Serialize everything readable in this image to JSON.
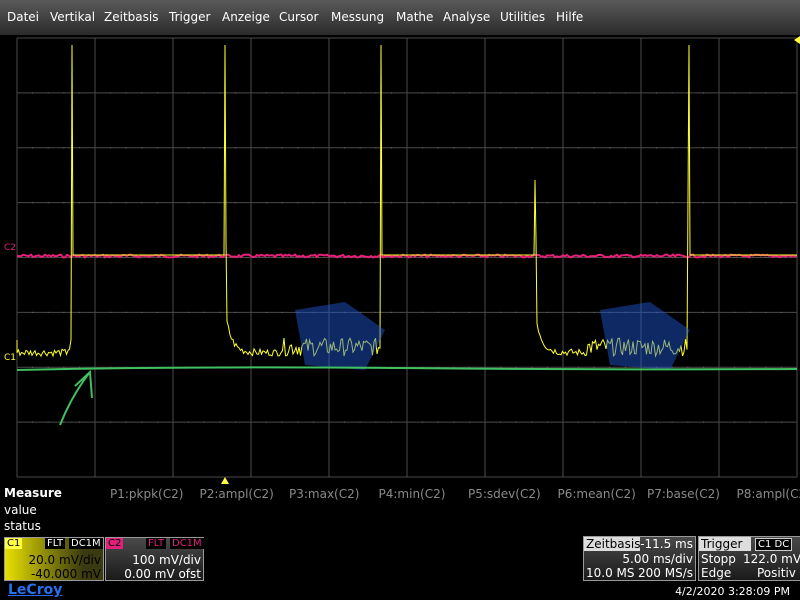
{
  "menu": [
    "Datei",
    "Vertikal",
    "Zeitbasis",
    "Trigger",
    "Anzeige",
    "Cursor",
    "Messung",
    "Mathe",
    "Analyse",
    "Utilities",
    "Hilfe"
  ],
  "channel_markers": {
    "c2": "C2",
    "c1": "C1"
  },
  "measure": {
    "title": "Measure",
    "rows": [
      "value",
      "status"
    ],
    "params": [
      "P1:pkpk(C2)",
      "P2:ampl(C2)",
      "P3:max(C2)",
      "P4:min(C2)",
      "P5:sdev(C2)",
      "P6:mean(C2)",
      "P7:base(C2)",
      "P8:ampl(C2)"
    ]
  },
  "channels": [
    {
      "label": "C1",
      "filter": "FLT",
      "coupling": "DC1M",
      "scale": "20.0 mV/div",
      "offset": "-40.000 mV"
    },
    {
      "label": "C2",
      "filter": "FLT",
      "coupling": "DC1M",
      "scale": "100 mV/div",
      "offset": "0.00 mV ofst"
    }
  ],
  "timebase": {
    "title": "Zeitbasis",
    "delay": "-11.5 ms",
    "scale": "5.00 ms/div",
    "samples": "10.0 MS",
    "rate": "200 MS/s"
  },
  "trigger": {
    "title": "Trigger",
    "source": "C1 DC",
    "state": "Stopp",
    "level": "122.0 mV",
    "mode": "Edge",
    "slope": "Positiv"
  },
  "footer": {
    "brand": "LeCroy",
    "datetime": "4/2/2020 3:28:09 PM"
  }
}
